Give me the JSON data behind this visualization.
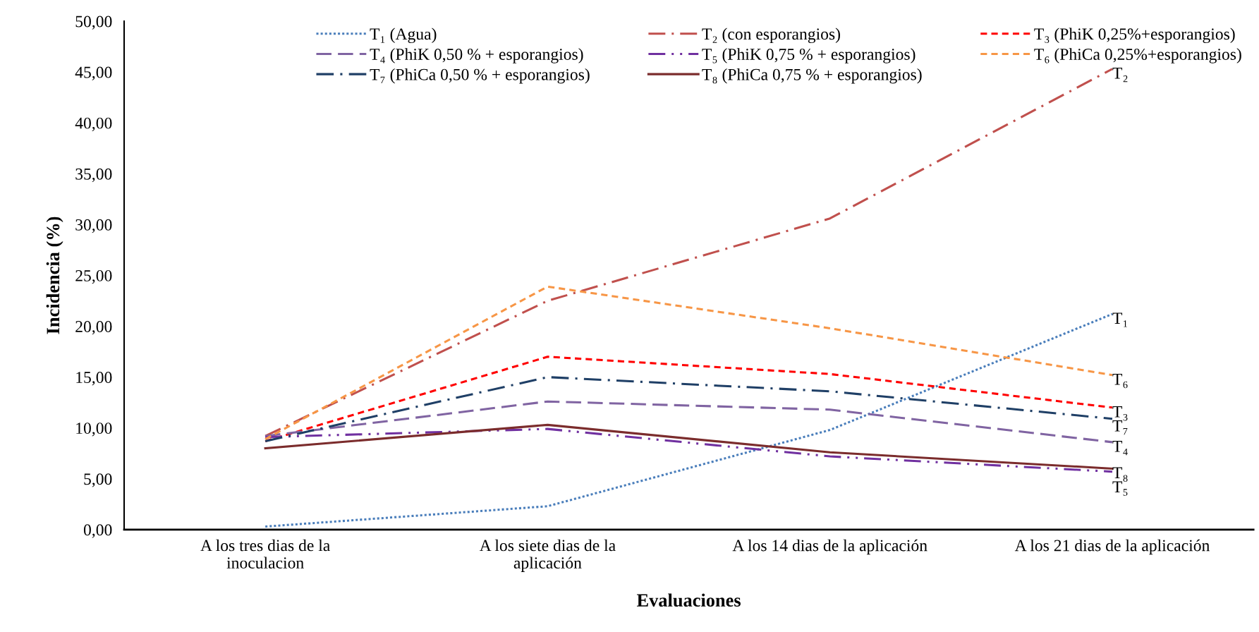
{
  "chart_data": {
    "type": "line",
    "xlabel": "Evaluaciones",
    "ylabel": "Incidencia (%)",
    "categories": [
      "A los tres dias de la\ninoculacion",
      "A los siete dias de la\naplicación",
      "A los 14 dias de la aplicación",
      "A los 21 dias de la aplicación"
    ],
    "ylim": [
      0,
      50
    ],
    "yticks": [
      {
        "value": 0,
        "label": "0,00"
      },
      {
        "value": 5,
        "label": "5,00"
      },
      {
        "value": 10,
        "label": "10,00"
      },
      {
        "value": 15,
        "label": "15,00"
      },
      {
        "value": 20,
        "label": "20,00"
      },
      {
        "value": 25,
        "label": "25,00"
      },
      {
        "value": 30,
        "label": "30,00"
      },
      {
        "value": 35,
        "label": "35,00"
      },
      {
        "value": 40,
        "label": "40,00"
      },
      {
        "value": 45,
        "label": "45,00"
      },
      {
        "value": 50,
        "label": "50,00"
      }
    ],
    "grid": false,
    "legend": "top",
    "marker": "none",
    "series": [
      {
        "name": "T₁ (Agua)",
        "color": "#4a7ebb",
        "line_style": "dotted",
        "values": [
          0.3,
          2.3,
          9.8,
          21.2
        ]
      },
      {
        "name": "T₂ (con esporangios)",
        "color": "#c0504d",
        "line_style": "dashdot",
        "values": [
          9.2,
          22.5,
          30.6,
          45.3
        ]
      },
      {
        "name": "T₃ (PhiK 0,25%+esporangios)",
        "color": "#ff0000",
        "line_style": "dashed",
        "values": [
          8.7,
          17.0,
          15.3,
          12.0
        ]
      },
      {
        "name": "T₄ (PhiK 0,50 % + esporangios)",
        "color": "#8064a2",
        "line_style": "longdash",
        "values": [
          9.2,
          12.6,
          11.8,
          8.6
        ]
      },
      {
        "name": "T₅ (PhiK 0,75 % + esporangios)",
        "color": "#7030a0",
        "line_style": "dashdotdot",
        "values": [
          9.1,
          9.9,
          7.2,
          5.7
        ]
      },
      {
        "name": "T₆ (PhiCa 0,25%+esporangios)",
        "color": "#f79646",
        "line_style": "dashed",
        "values": [
          8.9,
          23.9,
          19.8,
          15.2
        ]
      },
      {
        "name": "T₇ (PhiCa 0,50 % + esporangios)",
        "color": "#1f3f66",
        "line_style": "dashdot",
        "values": [
          8.7,
          15.0,
          13.6,
          10.9
        ]
      },
      {
        "name": "T₈ (PhiCa 0,75 % + esporangios)",
        "color": "#7b2c2c",
        "line_style": "solid",
        "values": [
          8.0,
          10.3,
          7.6,
          6.0
        ]
      }
    ],
    "annotations": [
      {
        "text": "T₂",
        "x": "A los 21 dias de la aplicación",
        "y": 45.3
      },
      {
        "text": "T₁",
        "x": "A los 21 dias de la aplicación",
        "y": 21.2
      },
      {
        "text": "T₆",
        "x": "A los 21 dias de la aplicación",
        "y": 15.2
      },
      {
        "text": "T₃",
        "x": "A los 21 dias de la aplicación",
        "y": 12.0
      },
      {
        "text": "T₇",
        "x": "A los 21 dias de la aplicación",
        "y": 10.9
      },
      {
        "text": "T₄",
        "x": "A los 21 dias de la aplicación",
        "y": 8.6
      },
      {
        "text": "T₈",
        "x": "A los 21 dias de la aplicación",
        "y": 6.0
      },
      {
        "text": "T₅",
        "x": "A los 21 dias de la aplicación",
        "y": 5.7
      }
    ]
  }
}
